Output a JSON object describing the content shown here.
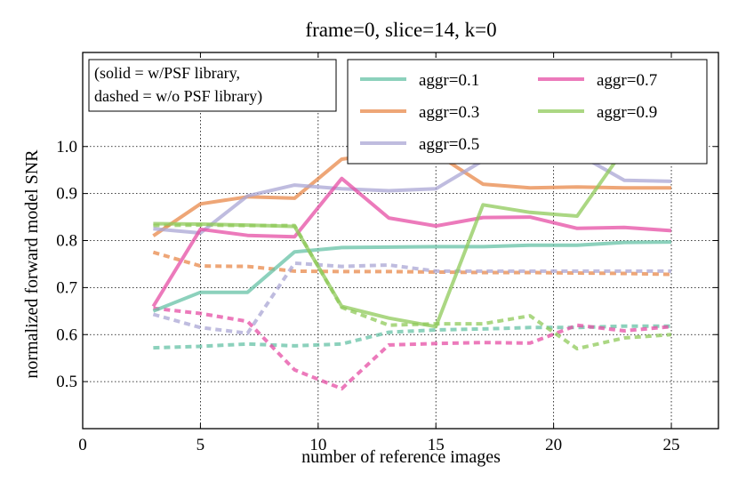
{
  "chart_data": {
    "type": "line",
    "title": "frame=0, slice=14, k=0",
    "xlabel": "number of reference images",
    "ylabel": "normalized forward model SNR",
    "xlim": [
      0,
      27
    ],
    "ylim": [
      0.4,
      1.2
    ],
    "xticks": [
      "0",
      "5",
      "10",
      "15",
      "20",
      "25"
    ],
    "yticks": [
      "0.5",
      "0.6",
      "0.7",
      "0.8",
      "0.9",
      "1.0"
    ],
    "grid": true,
    "annotation": [
      "(solid = w/PSF library,",
      "dashed = w/o PSF library)"
    ],
    "legend_position": "top-right",
    "x": [
      3,
      5,
      7,
      9,
      11,
      13,
      15,
      17,
      19,
      21,
      23,
      25
    ],
    "series": [
      {
        "name": "aggr=0.1",
        "color": "#66c2a5",
        "solid": [
          0.65,
          0.69,
          0.69,
          0.776,
          0.785,
          0.786,
          0.787,
          0.787,
          0.79,
          0.79,
          0.796,
          0.797
        ],
        "dashed": [
          0.572,
          0.575,
          0.58,
          0.576,
          0.58,
          0.605,
          0.61,
          0.612,
          0.615,
          0.615,
          0.618,
          0.618
        ]
      },
      {
        "name": "aggr=0.3",
        "color": "#e8884a",
        "solid": [
          0.81,
          0.878,
          0.893,
          0.89,
          0.973,
          0.987,
          0.985,
          0.92,
          0.912,
          0.914,
          0.912,
          0.912
        ],
        "dashed": [
          0.775,
          0.746,
          0.745,
          0.735,
          0.734,
          0.734,
          0.733,
          0.732,
          0.732,
          0.731,
          0.73,
          0.728
        ]
      },
      {
        "name": "aggr=0.5",
        "color": "#a9a6d4",
        "solid": [
          0.825,
          0.816,
          0.895,
          0.918,
          0.91,
          0.906,
          0.91,
          0.97,
          0.985,
          0.985,
          0.928,
          0.926
        ],
        "dashed": [
          0.643,
          0.615,
          0.603,
          0.752,
          0.745,
          0.748,
          0.735,
          0.735,
          0.735,
          0.735,
          0.735,
          0.735
        ]
      },
      {
        "name": "aggr=0.7",
        "color": "#e64ea4",
        "solid": [
          0.66,
          0.824,
          0.811,
          0.808,
          0.932,
          0.848,
          0.831,
          0.849,
          0.85,
          0.826,
          0.828,
          0.821
        ],
        "dashed": [
          0.656,
          0.645,
          0.628,
          0.525,
          0.485,
          0.578,
          0.581,
          0.583,
          0.582,
          0.62,
          0.608,
          0.617
        ]
      },
      {
        "name": "aggr=0.9",
        "color": "#8fc95a",
        "solid": [
          0.836,
          0.835,
          0.833,
          0.83,
          0.66,
          0.635,
          0.617,
          0.876,
          0.86,
          0.852,
          0.995,
          0.998
        ],
        "dashed": [
          0.832,
          0.833,
          0.832,
          0.832,
          0.658,
          0.62,
          0.623,
          0.623,
          0.64,
          0.57,
          0.593,
          0.6
        ]
      }
    ]
  }
}
